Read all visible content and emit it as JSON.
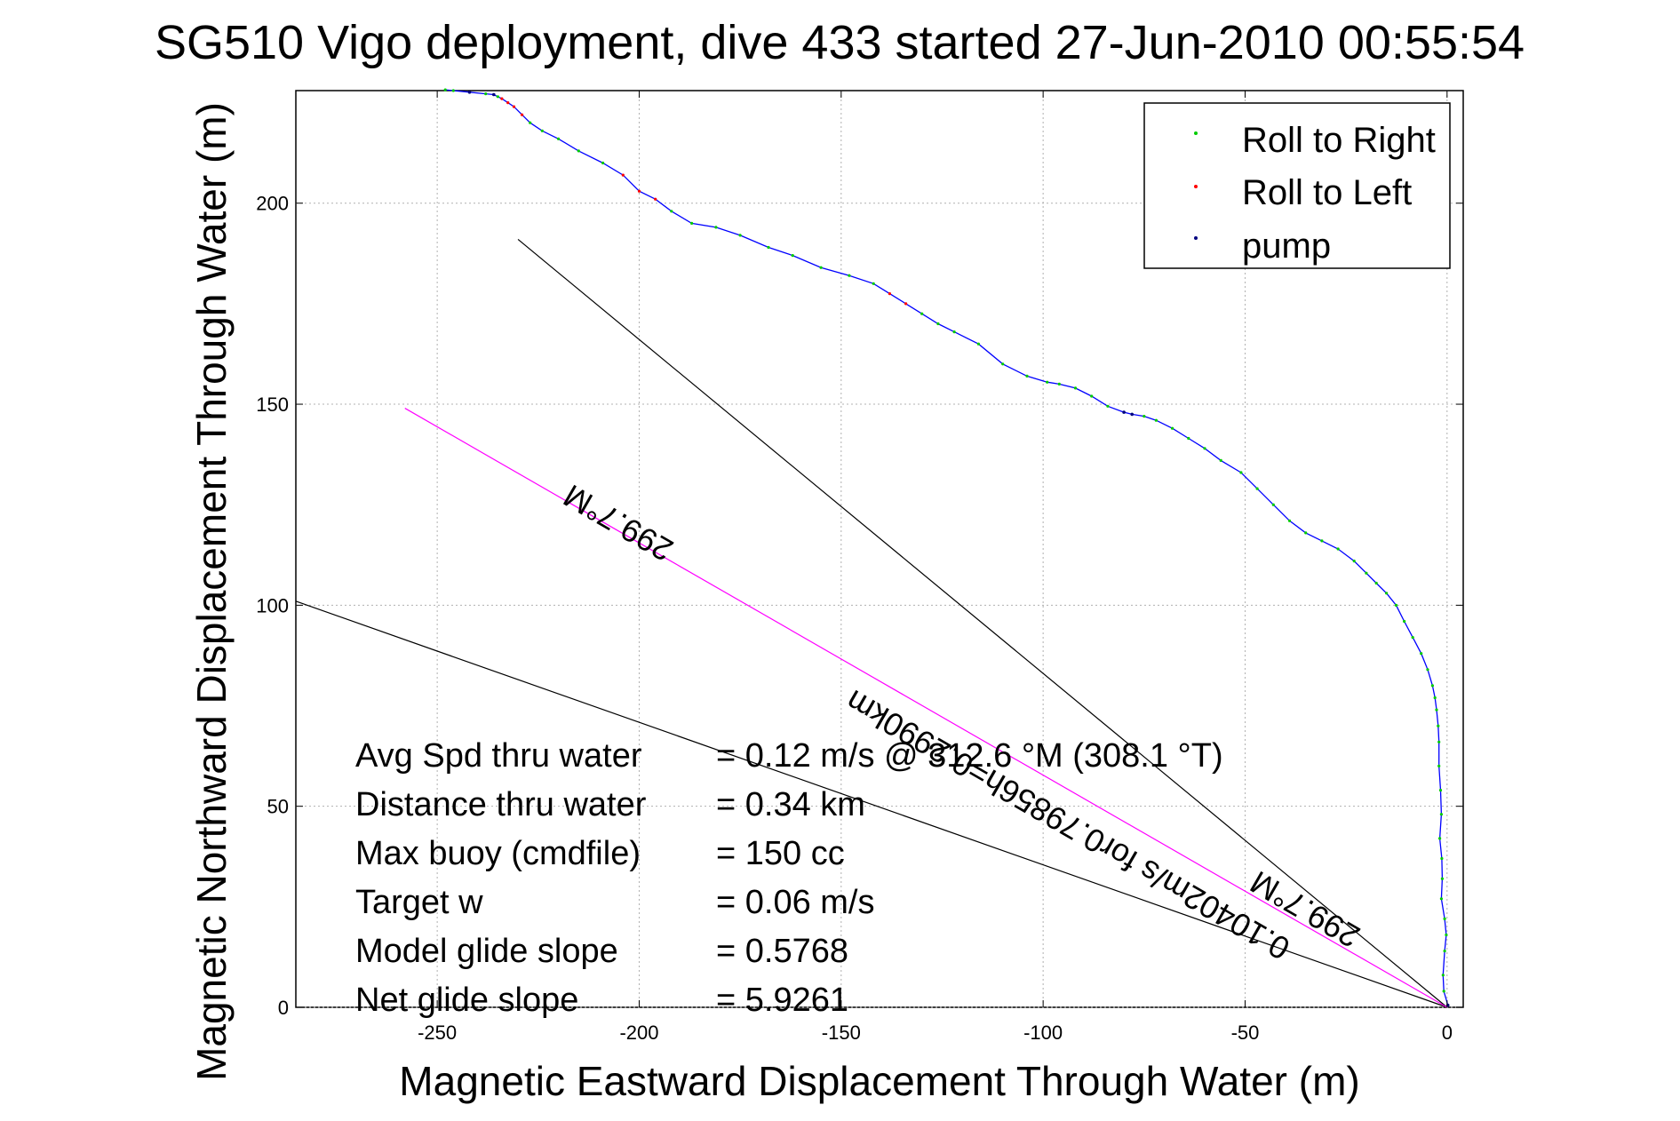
{
  "chart_data": {
    "type": "line",
    "title": "SG510 Vigo deployment, dive 433 started 27-Jun-2010 00:55:54",
    "xlabel": "Magnetic Eastward Displacement Through Water (m)",
    "ylabel": "Magnetic Northward Displacement Through Water (m)",
    "xlim": [
      -285,
      4
    ],
    "ylim": [
      0,
      228
    ],
    "xticks": [
      -250,
      -200,
      -150,
      -100,
      -50,
      0
    ],
    "yticks": [
      0,
      50,
      100,
      150,
      200
    ],
    "grid": true,
    "legend_position": "top-right",
    "legend": [
      {
        "label": "Roll to Right",
        "color": "#00cc00"
      },
      {
        "label": "Roll to Left",
        "color": "#ff0000"
      },
      {
        "label": "pump",
        "color": "#000080"
      }
    ],
    "track": {
      "name": "track",
      "color": "#0000ff",
      "x": [
        0.2,
        -0.8,
        -1.0,
        -0.6,
        -0.2,
        -0.6,
        -1.4,
        -1.2,
        -1.3,
        -1.8,
        -1.4,
        -1.6,
        -2.0,
        -2.0,
        -2.2,
        -2.6,
        -3.0,
        -3.6,
        -4.8,
        -6.4,
        -8.5,
        -10.6,
        -12.6,
        -15.0,
        -17.5,
        -20.0,
        -23.0,
        -27.0,
        -31.0,
        -35.0,
        -39.0,
        -43.0,
        -47.0,
        -51.0,
        -56.0,
        -60.0,
        -64.0,
        -68.0,
        -72.0,
        -75.0,
        -78.0,
        -80.0,
        -84.0,
        -88.0,
        -92.0,
        -96.0,
        -99.0,
        -104.0,
        -110.0,
        -116.0,
        -122.0,
        -126.0,
        -130.0,
        -134.0,
        -138.0,
        -142.0,
        -148.0,
        -155.0,
        -162.0,
        -168.0,
        -175.0,
        -181.0,
        -187.0,
        -192.0,
        -196.0,
        -200.0,
        -204.0,
        -209.0,
        -215.0,
        -220.0,
        -224.0,
        -227.0,
        -229.0,
        -231.0,
        -232.5,
        -234.0,
        -235.0,
        -236.0,
        -238.0,
        -242.0,
        -246.0,
        -248.0
      ],
      "y": [
        0.5,
        4,
        8,
        14,
        18,
        22,
        27,
        32,
        37,
        42,
        48,
        54,
        60,
        66,
        70,
        74,
        77,
        80,
        84,
        88,
        92,
        96,
        100,
        103,
        105.5,
        108,
        111,
        114,
        116,
        118,
        121,
        125,
        129,
        133,
        136,
        139,
        141.5,
        144,
        146,
        147,
        147.5,
        148,
        149.5,
        152,
        154,
        155,
        155.5,
        157,
        160,
        165,
        168,
        170,
        172.5,
        175,
        177.5,
        180,
        182,
        184,
        187,
        189,
        192,
        194,
        195,
        198,
        201,
        203,
        207,
        210,
        213,
        216,
        218,
        220,
        222,
        224,
        225,
        226,
        226.5,
        227,
        227.2,
        227.6,
        228,
        228.2
      ]
    },
    "course_lines": [
      {
        "name": "heading-line-1",
        "color": "#000000",
        "x": [
          0,
          -285
        ],
        "y": [
          0,
          101
        ]
      },
      {
        "name": "heading-line-2",
        "color": "#000000",
        "x": [
          0,
          -230
        ],
        "y": [
          0,
          191
        ]
      },
      {
        "name": "heading-line-magenta",
        "color": "#ff00ff",
        "x": [
          0,
          -258
        ],
        "y": [
          0,
          149
        ]
      }
    ],
    "line_labels": [
      {
        "text": "299.7°M",
        "angle": 30
      },
      {
        "text": "0.10402m/s for0.79856h=0.2990km",
        "angle": 30
      },
      {
        "text": "299.7°M",
        "angle": 30
      }
    ],
    "stats": [
      {
        "label": "Avg Spd thru water",
        "value": "=  0.12 m/s @ 312.6 °M (308.1 °T)"
      },
      {
        "label": "Distance thru water",
        "value": "=  0.34 km"
      },
      {
        "label": "Max buoy (cmdfile)",
        "value": "= 150 cc"
      },
      {
        "label": "Target w",
        "value": "= 0.06 m/s"
      },
      {
        "label": "Model glide slope",
        "value": "= 0.5768"
      },
      {
        "label": "Net glide slope",
        "value": "= 5.9261"
      }
    ]
  }
}
